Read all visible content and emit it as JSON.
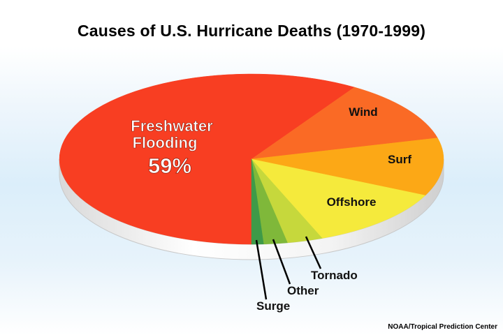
{
  "chart_data": {
    "type": "pie",
    "title": "Causes of U.S. Hurricane Deaths (1970-1999)",
    "source": "NOAA/Tropical Prediction Center",
    "slices": [
      {
        "label": "Freshwater Flooding",
        "value": 59,
        "value_label": "59%",
        "color": "#f83e22"
      },
      {
        "label": "Wind",
        "value": 12,
        "color": "#fa6a25"
      },
      {
        "label": "Surf",
        "value": 11,
        "color": "#fca816"
      },
      {
        "label": "Offshore",
        "value": 12,
        "color": "#f5ea3c"
      },
      {
        "label": "Tornado",
        "value": 3,
        "color": "#c6d83c"
      },
      {
        "label": "Other",
        "value": 2,
        "color": "#7fb83a"
      },
      {
        "label": "Surge",
        "value": 1,
        "color": "#3e9a48"
      }
    ]
  }
}
